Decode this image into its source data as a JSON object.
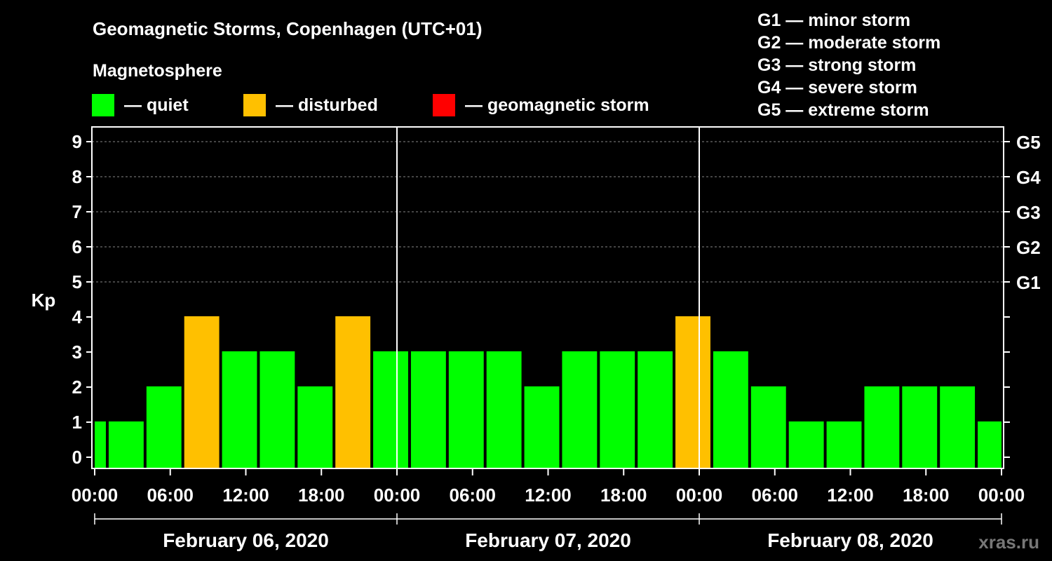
{
  "title": "Geomagnetic Storms, Copenhagen (UTC+01)",
  "subtitle": "Magnetosphere",
  "legend": [
    {
      "label": "— quiet",
      "color": "#00ff00"
    },
    {
      "label": "— disturbed",
      "color": "#ffc000"
    },
    {
      "label": "— geomagnetic storm",
      "color": "#ff0000"
    }
  ],
  "storm_scale": [
    "G1 — minor storm",
    "G2 — moderate storm",
    "G3 — strong storm",
    "G4 — severe storm",
    "G5 — extreme storm"
  ],
  "watermark": "xras.ru",
  "chart_data": {
    "type": "bar",
    "ylabel": "Kp",
    "ylim": [
      0,
      9
    ],
    "yticks": [
      0,
      1,
      2,
      3,
      4,
      5,
      6,
      7,
      8,
      9
    ],
    "right_axis_labels": [
      {
        "value": 5,
        "label": "G1"
      },
      {
        "value": 6,
        "label": "G2"
      },
      {
        "value": 7,
        "label": "G3"
      },
      {
        "value": 8,
        "label": "G4"
      },
      {
        "value": 9,
        "label": "G5"
      }
    ],
    "xlim_hours": [
      0,
      72
    ],
    "xticks": [
      {
        "hour": 0,
        "label": "00:00"
      },
      {
        "hour": 6,
        "label": "06:00"
      },
      {
        "hour": 12,
        "label": "12:00"
      },
      {
        "hour": 18,
        "label": "18:00"
      },
      {
        "hour": 24,
        "label": "00:00"
      },
      {
        "hour": 30,
        "label": "06:00"
      },
      {
        "hour": 36,
        "label": "12:00"
      },
      {
        "hour": 42,
        "label": "18:00"
      },
      {
        "hour": 48,
        "label": "00:00"
      },
      {
        "hour": 54,
        "label": "06:00"
      },
      {
        "hour": 60,
        "label": "12:00"
      },
      {
        "hour": 66,
        "label": "18:00"
      },
      {
        "hour": 72,
        "label": "00:00"
      }
    ],
    "days": [
      {
        "start": 0,
        "end": 24,
        "label": "February 06, 2020"
      },
      {
        "start": 24,
        "end": 48,
        "label": "February 07, 2020"
      },
      {
        "start": 48,
        "end": 72,
        "label": "February 08, 2020"
      }
    ],
    "grid": true,
    "colors": {
      "quiet": "#00ff00",
      "disturbed": "#ffc000",
      "storm": "#ff0000"
    },
    "bars": [
      {
        "start": 0,
        "end": 1,
        "kp": 1
      },
      {
        "start": 1,
        "end": 4,
        "kp": 1
      },
      {
        "start": 4,
        "end": 7,
        "kp": 2
      },
      {
        "start": 7,
        "end": 10,
        "kp": 4
      },
      {
        "start": 10,
        "end": 13,
        "kp": 3
      },
      {
        "start": 13,
        "end": 16,
        "kp": 3
      },
      {
        "start": 16,
        "end": 19,
        "kp": 2
      },
      {
        "start": 19,
        "end": 22,
        "kp": 4
      },
      {
        "start": 22,
        "end": 25,
        "kp": 3
      },
      {
        "start": 25,
        "end": 28,
        "kp": 3
      },
      {
        "start": 28,
        "end": 31,
        "kp": 3
      },
      {
        "start": 31,
        "end": 34,
        "kp": 3
      },
      {
        "start": 34,
        "end": 37,
        "kp": 2
      },
      {
        "start": 37,
        "end": 40,
        "kp": 3
      },
      {
        "start": 40,
        "end": 43,
        "kp": 3
      },
      {
        "start": 43,
        "end": 46,
        "kp": 3
      },
      {
        "start": 46,
        "end": 49,
        "kp": 4
      },
      {
        "start": 49,
        "end": 52,
        "kp": 3
      },
      {
        "start": 52,
        "end": 55,
        "kp": 2
      },
      {
        "start": 55,
        "end": 58,
        "kp": 1
      },
      {
        "start": 58,
        "end": 61,
        "kp": 1
      },
      {
        "start": 61,
        "end": 64,
        "kp": 2
      },
      {
        "start": 64,
        "end": 67,
        "kp": 2
      },
      {
        "start": 67,
        "end": 70,
        "kp": 2
      },
      {
        "start": 70,
        "end": 72,
        "kp": 1
      }
    ]
  }
}
